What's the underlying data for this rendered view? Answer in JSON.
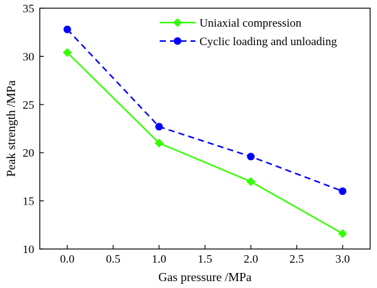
{
  "chart_data": {
    "type": "line",
    "xlabel": "Gas pressure /MPa",
    "ylabel": "Peak strength /MPa",
    "xlim": [
      -0.3,
      3.3
    ],
    "ylim": [
      10,
      35
    ],
    "x_ticks": [
      "0.0",
      "0.5",
      "1.0",
      "1.5",
      "2.0",
      "2.5",
      "3.0"
    ],
    "y_ticks": [
      "10",
      "15",
      "20",
      "25",
      "30",
      "35"
    ],
    "grid": false,
    "legend_position": "top-right",
    "series": [
      {
        "name": "Uniaxial compression",
        "x": [
          0,
          1,
          2,
          3
        ],
        "y": [
          30.4,
          21.0,
          17.0,
          11.6
        ],
        "color": "#33ff00",
        "line_style": "solid",
        "marker": "diamond"
      },
      {
        "name": "Cyclic loading and unloading",
        "x": [
          0,
          1,
          2,
          3
        ],
        "y": [
          32.8,
          22.7,
          19.6,
          16.0
        ],
        "color": "#0000ff",
        "line_style": "dashed",
        "marker": "circle"
      }
    ]
  }
}
